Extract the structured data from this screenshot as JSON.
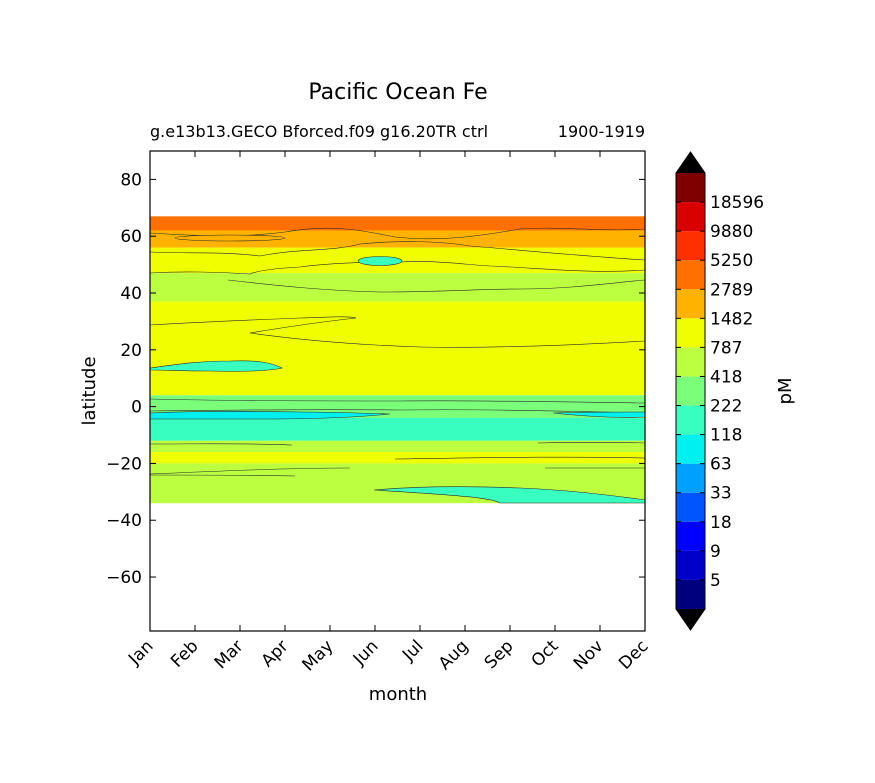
{
  "chart_data": {
    "type": "heatmap",
    "title": "Pacific Ocean Fe",
    "subtitle_left": "g.e13b13.GECO Bforced.f09 g16.20TR ctrl",
    "subtitle_right": "1900-1919",
    "xlabel": "month",
    "ylabel": "latitude",
    "x_ticks": [
      "Jan",
      "Feb",
      "Mar",
      "Apr",
      "May",
      "Jun",
      "Jul",
      "Aug",
      "Sep",
      "Oct",
      "Nov",
      "Dec"
    ],
    "y_ticks": [
      80,
      60,
      40,
      20,
      0,
      -20,
      -40,
      -60
    ],
    "y_tick_labels": [
      "80",
      "60",
      "40",
      "20",
      "0",
      "−20",
      "−40",
      "−60"
    ],
    "ylim": [
      -79,
      90
    ],
    "data_lat_range": [
      -34,
      67
    ],
    "colorbar": {
      "label": "pM",
      "levels": [
        "5",
        "9",
        "18",
        "33",
        "63",
        "118",
        "222",
        "418",
        "787",
        "1482",
        "2789",
        "5250",
        "9880",
        "18596"
      ],
      "colors": [
        "#00007f",
        "#0000c8",
        "#0000ff",
        "#0055ff",
        "#00a0ff",
        "#00f0f0",
        "#38ffc0",
        "#7bff7b",
        "#bbff40",
        "#f0ff00",
        "#ffb300",
        "#ff7000",
        "#ff3000",
        "#d80000",
        "#7f0000"
      ],
      "extend": "both"
    },
    "bands": [
      {
        "lat": [
          62,
          67
        ],
        "value": "2789-5250"
      },
      {
        "lat": [
          56,
          62
        ],
        "value": "1482-2789"
      },
      {
        "lat": [
          47,
          56
        ],
        "value": "787-1482"
      },
      {
        "lat": [
          37,
          47
        ],
        "value": "418-787"
      },
      {
        "lat": [
          4,
          37
        ],
        "value": "787-1482"
      },
      {
        "lat": [
          -4,
          4
        ],
        "value": "222-418"
      },
      {
        "lat": [
          -12,
          -4
        ],
        "value": "118-222"
      },
      {
        "lat": [
          -16,
          -12
        ],
        "value": "418-787"
      },
      {
        "lat": [
          -20,
          -16
        ],
        "value": "787-1482"
      },
      {
        "lat": [
          -34,
          -20
        ],
        "value": "418-787"
      }
    ]
  }
}
